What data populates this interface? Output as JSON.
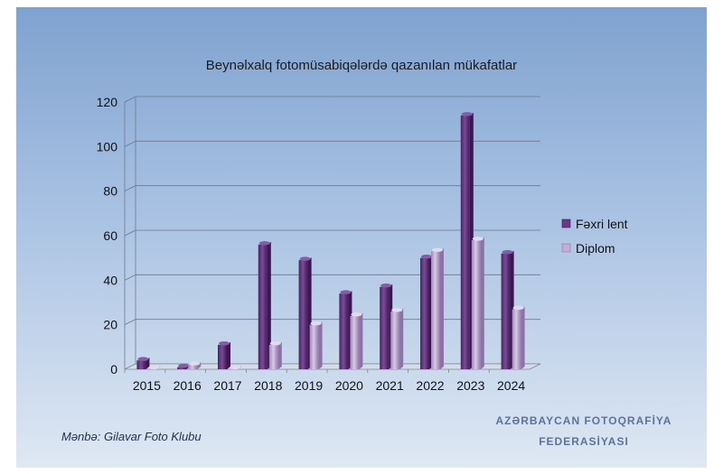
{
  "chart_data": {
    "type": "bar",
    "title": "Beynəlxalq fotomüsabiqələrdə qazanılan mükafatlar",
    "categories": [
      "2015",
      "2016",
      "2017",
      "2018",
      "2019",
      "2020",
      "2021",
      "2022",
      "2023",
      "2024"
    ],
    "series": [
      {
        "name": "Fəxri lent",
        "values": [
          4,
          1,
          11,
          56,
          49,
          34,
          37,
          50,
          114,
          52
        ],
        "color": "#6b3a86"
      },
      {
        "name": "Diplom",
        "values": [
          0,
          2,
          0,
          11,
          20,
          24,
          26,
          53,
          58,
          27
        ],
        "color": "#c2aed4"
      }
    ],
    "ylim": [
      0,
      120
    ],
    "yticks": [
      "0",
      "20",
      "40",
      "60",
      "80",
      "100",
      "120"
    ],
    "grid": true,
    "legend_position": "right"
  },
  "footer": {
    "source": "Mənbə: Gilavar Foto Klubu",
    "federation_line1": "AZƏRBAYCAN FOTOQRAFİYA",
    "federation_line2": "FEDERASİYASI"
  }
}
